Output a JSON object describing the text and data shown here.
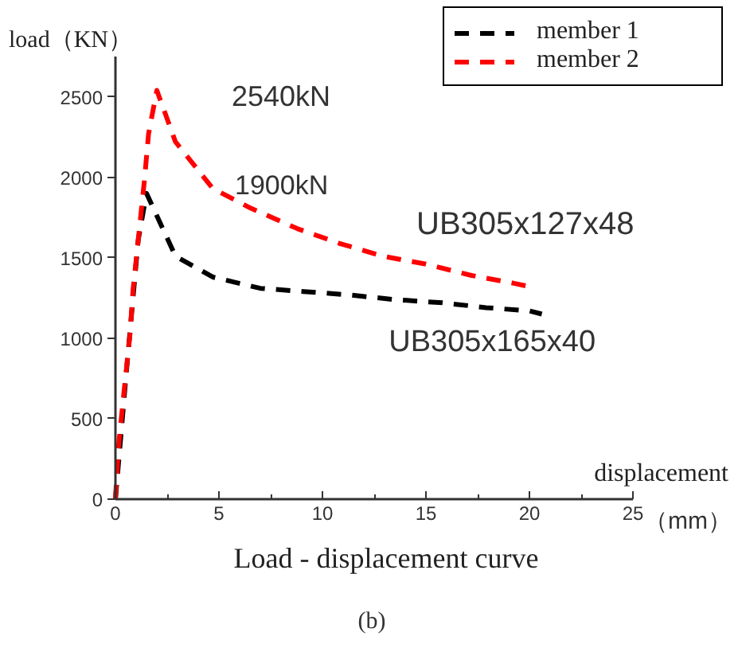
{
  "chart_data": {
    "type": "line",
    "title": "Load - displacement curve",
    "xlabel": "displacement",
    "ylabel": "load（KN）",
    "annotations": [
      {
        "text": "2540kN",
        "x": 2.0,
        "y": 2540
      },
      "1900kN",
      {
        "text": "UB305x127x48",
        "x": 19.8,
        "y": 1340
      },
      {
        "text": "UB305x165x40",
        "x": 18.2,
        "y": 1190
      },
      "（mm）",
      "(b)"
    ],
    "series": [
      {
        "name": "member 1",
        "color": "#000000",
        "x": [
          0,
          0.5,
          1.1,
          1.5,
          2.9,
          4.7,
          7.0,
          9.1,
          11.2,
          13.5,
          15.8,
          17.9,
          20.0,
          20.6
        ],
        "values": [
          0,
          750,
          1610,
          1900,
          1510,
          1380,
          1310,
          1290,
          1270,
          1240,
          1220,
          1190,
          1170,
          1150
        ]
      },
      {
        "name": "member 2",
        "color": "#ff0000",
        "x": [
          0,
          0.15,
          0.4,
          0.7,
          0.85,
          1.4,
          1.6,
          2.0,
          2.9,
          4.7,
          6.5,
          8.8,
          10.8,
          12.9,
          15.0,
          17.2,
          19.3,
          20.0
        ],
        "values": [
          0,
          330,
          650,
          1020,
          1300,
          1980,
          2270,
          2540,
          2220,
          1930,
          1810,
          1680,
          1590,
          1510,
          1460,
          1390,
          1340,
          1320
        ]
      }
    ],
    "xlim": [
      0,
      25
    ],
    "ylim": [
      0,
      2750
    ],
    "xticks": [
      0,
      {
        "value": 2.5,
        "label": null
      },
      5,
      {
        "value": 7.5,
        "label": null
      },
      10,
      {
        "value": 12.5,
        "label": null
      },
      15,
      {
        "value": 17.5,
        "label": null
      },
      20,
      {
        "value": 22.5,
        "label": null
      },
      25
    ],
    "yticks": [
      0,
      500,
      1000,
      1500,
      2000,
      2500
    ],
    "legend": "top right",
    "line_style": "dashed"
  }
}
